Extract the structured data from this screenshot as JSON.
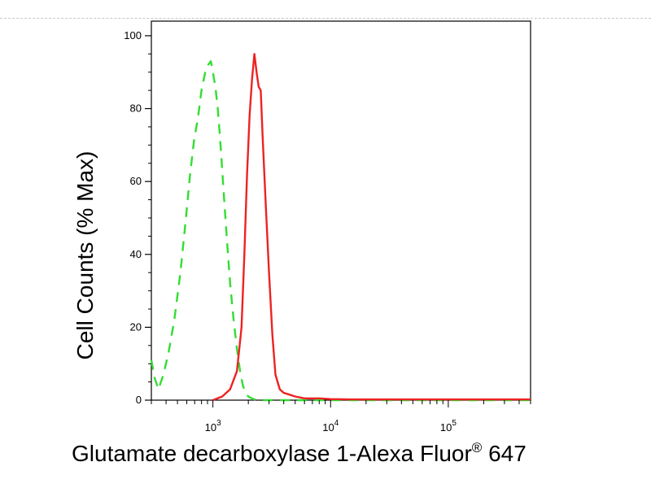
{
  "chart_data": {
    "type": "line",
    "title": "",
    "xlabel": "Glutamate decarboxylase 1-Alexa Fluor",
    "xlabel_superscript": "®",
    "xlabel_suffix": " 647",
    "ylabel": "Cell Counts (% Max)",
    "x_scale": "log",
    "xlim": [
      300,
      500000
    ],
    "ylim": [
      0,
      104
    ],
    "x_ticks": [
      {
        "value": 1000,
        "base": "10",
        "exp": "3"
      },
      {
        "value": 10000,
        "base": "10",
        "exp": "4"
      },
      {
        "value": 100000,
        "base": "10",
        "exp": "5"
      }
    ],
    "y_ticks": [
      "0",
      "20",
      "40",
      "60",
      "80",
      "100"
    ],
    "grid": false,
    "series": [
      {
        "color": "#33dd33",
        "style": "dashed",
        "x": [
          300,
          320,
          345,
          380,
          420,
          470,
          530,
          590,
          640,
          690,
          750,
          800,
          860,
          910,
          960,
          1000,
          1050,
          1100,
          1150,
          1200,
          1260,
          1330,
          1400,
          1500,
          1600,
          1700,
          1800,
          1900,
          2000,
          2200,
          2500,
          3000,
          4000,
          6000,
          500000
        ],
        "y": [
          11,
          6,
          3,
          7,
          13,
          22,
          35,
          50,
          62,
          71,
          78,
          85,
          90,
          92,
          93,
          90,
          86,
          80,
          72,
          63,
          53,
          42,
          32,
          22,
          14,
          8,
          4,
          2,
          1,
          0.3,
          0,
          0,
          0,
          0,
          0
        ]
      },
      {
        "color": "#ee2222",
        "style": "solid",
        "x": [
          1000,
          1200,
          1400,
          1600,
          1750,
          1850,
          1950,
          2050,
          2150,
          2250,
          2350,
          2450,
          2550,
          2650,
          2800,
          3000,
          3200,
          3400,
          3700,
          4000,
          4500,
          5000,
          6000,
          8000,
          10000,
          15000,
          30000,
          100000,
          500000
        ],
        "y": [
          0,
          1,
          3,
          8,
          20,
          40,
          62,
          78,
          88,
          95,
          90,
          86,
          85,
          72,
          55,
          35,
          18,
          7,
          3,
          2,
          1.5,
          1,
          0.5,
          0.5,
          0.3,
          0.2,
          0.2,
          0.2,
          0.2
        ]
      }
    ]
  }
}
